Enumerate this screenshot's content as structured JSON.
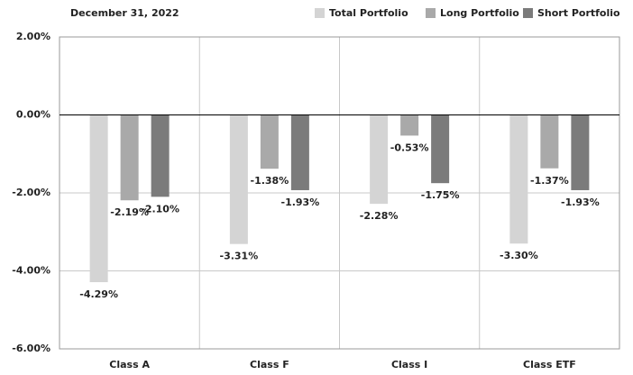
{
  "chart_data": {
    "type": "bar",
    "title": "December 31, 2022",
    "categories": [
      "Class A",
      "Class F",
      "Class I",
      "Class ETF"
    ],
    "series": [
      {
        "name": "Total Portfolio",
        "color": "#d4d4d4",
        "values": [
          -4.29,
          -3.31,
          -2.28,
          -3.3
        ],
        "value_labels": [
          "-4.29%",
          "-3.31%",
          "-2.28%",
          "-3.30%"
        ]
      },
      {
        "name": "Long Portfolio",
        "color": "#a9a9a9",
        "values": [
          -2.19,
          -1.38,
          -0.53,
          -1.37
        ],
        "value_labels": [
          "-2.19%",
          "-1.38%",
          "-0.53%",
          "-1.37%"
        ]
      },
      {
        "name": "Short Portfolio",
        "color": "#7b7b7b",
        "values": [
          -2.1,
          -1.93,
          -1.75,
          -1.93
        ],
        "value_labels": [
          "-2.10%",
          "-1.93%",
          "-1.75%",
          "-1.93%"
        ]
      }
    ],
    "ylim": [
      -6,
      2
    ],
    "yticks": [
      {
        "value": -6,
        "label": "-6.00%"
      },
      {
        "value": -4,
        "label": "-4.00%"
      },
      {
        "value": -2,
        "label": "-2.00%"
      },
      {
        "value": 0,
        "label": "0.00%"
      },
      {
        "value": 2,
        "label": "2.00%"
      }
    ],
    "grid": true,
    "legend": "top-right"
  }
}
